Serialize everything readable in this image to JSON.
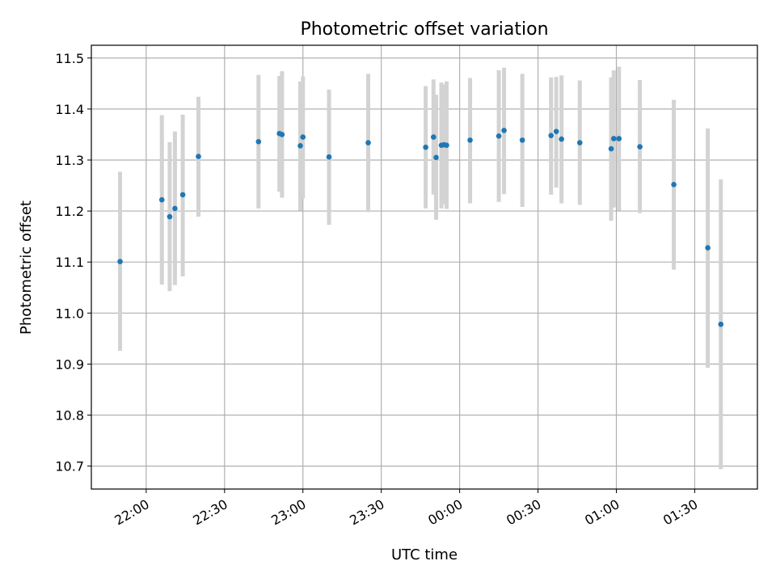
{
  "chart_data": {
    "type": "scatter",
    "title": "Photometric offset variation",
    "xlabel": "UTC time",
    "ylabel": "Photometric offset",
    "x_unit": "UTC",
    "xlim": [
      "21:39",
      "01:54"
    ],
    "ylim": [
      10.655,
      11.525
    ],
    "grid": true,
    "x_ticks": [
      {
        "value": "22:00",
        "label": "22:00"
      },
      {
        "value": "22:30",
        "label": "22:30"
      },
      {
        "value": "23:00",
        "label": "23:00"
      },
      {
        "value": "23:30",
        "label": "23:30"
      },
      {
        "value": "00:00",
        "label": "00:00"
      },
      {
        "value": "00:30",
        "label": "00:30"
      },
      {
        "value": "01:00",
        "label": "01:00"
      },
      {
        "value": "01:30",
        "label": "01:30"
      }
    ],
    "y_ticks": [
      {
        "value": 10.7,
        "label": "10.7"
      },
      {
        "value": 10.8,
        "label": "10.8"
      },
      {
        "value": 10.9,
        "label": "10.9"
      },
      {
        "value": 11.0,
        "label": "11.0"
      },
      {
        "value": 11.1,
        "label": "11.1"
      },
      {
        "value": 11.2,
        "label": "11.2"
      },
      {
        "value": 11.3,
        "label": "11.3"
      },
      {
        "value": 11.4,
        "label": "11.4"
      },
      {
        "value": 11.5,
        "label": "11.5"
      }
    ],
    "marker_color": "#1f77b4",
    "errorbar_color": "#d3d3d3",
    "points": [
      {
        "x": "21:50",
        "y": 11.101,
        "ylow": 10.926,
        "yhigh": 11.277
      },
      {
        "x": "22:06",
        "y": 11.222,
        "ylow": 11.056,
        "yhigh": 11.388
      },
      {
        "x": "22:09",
        "y": 11.189,
        "ylow": 11.043,
        "yhigh": 11.335
      },
      {
        "x": "22:11",
        "y": 11.205,
        "ylow": 11.055,
        "yhigh": 11.356
      },
      {
        "x": "22:14",
        "y": 11.232,
        "ylow": 11.072,
        "yhigh": 11.389
      },
      {
        "x": "22:20",
        "y": 11.307,
        "ylow": 11.189,
        "yhigh": 11.424
      },
      {
        "x": "22:43",
        "y": 11.336,
        "ylow": 11.205,
        "yhigh": 11.467
      },
      {
        "x": "22:51",
        "y": 11.352,
        "ylow": 11.238,
        "yhigh": 11.465
      },
      {
        "x": "22:52",
        "y": 11.35,
        "ylow": 11.226,
        "yhigh": 11.474
      },
      {
        "x": "22:59",
        "y": 11.328,
        "ylow": 11.201,
        "yhigh": 11.454
      },
      {
        "x": "23:00",
        "y": 11.345,
        "ylow": 11.225,
        "yhigh": 11.464
      },
      {
        "x": "23:10",
        "y": 11.306,
        "ylow": 11.173,
        "yhigh": 11.438
      },
      {
        "x": "23:25",
        "y": 11.334,
        "ylow": 11.198,
        "yhigh": 11.469
      },
      {
        "x": "23:47",
        "y": 11.325,
        "ylow": 11.205,
        "yhigh": 11.445
      },
      {
        "x": "23:50",
        "y": 11.345,
        "ylow": 11.232,
        "yhigh": 11.458
      },
      {
        "x": "23:51",
        "y": 11.305,
        "ylow": 11.183,
        "yhigh": 11.428
      },
      {
        "x": "23:53",
        "y": 11.329,
        "ylow": 11.205,
        "yhigh": 11.452
      },
      {
        "x": "23:54",
        "y": 11.33,
        "ylow": 11.213,
        "yhigh": 11.448
      },
      {
        "x": "23:55",
        "y": 11.329,
        "ylow": 11.204,
        "yhigh": 11.454
      },
      {
        "x": "00:04",
        "y": 11.339,
        "ylow": 11.215,
        "yhigh": 11.461
      },
      {
        "x": "00:15",
        "y": 11.347,
        "ylow": 11.218,
        "yhigh": 11.476
      },
      {
        "x": "00:17",
        "y": 11.358,
        "ylow": 11.233,
        "yhigh": 11.481
      },
      {
        "x": "00:24",
        "y": 11.339,
        "ylow": 11.208,
        "yhigh": 11.469
      },
      {
        "x": "00:35",
        "y": 11.348,
        "ylow": 11.232,
        "yhigh": 11.462
      },
      {
        "x": "00:37",
        "y": 11.356,
        "ylow": 11.246,
        "yhigh": 11.463
      },
      {
        "x": "00:39",
        "y": 11.341,
        "ylow": 11.215,
        "yhigh": 11.466
      },
      {
        "x": "00:46",
        "y": 11.334,
        "ylow": 11.212,
        "yhigh": 11.456
      },
      {
        "x": "00:58",
        "y": 11.322,
        "ylow": 11.181,
        "yhigh": 11.462
      },
      {
        "x": "00:59",
        "y": 11.342,
        "ylow": 11.207,
        "yhigh": 11.476
      },
      {
        "x": "01:01",
        "y": 11.342,
        "ylow": 11.201,
        "yhigh": 11.483
      },
      {
        "x": "01:09",
        "y": 11.326,
        "ylow": 11.196,
        "yhigh": 11.457
      },
      {
        "x": "01:22",
        "y": 11.252,
        "ylow": 11.085,
        "yhigh": 11.418
      },
      {
        "x": "01:35",
        "y": 11.128,
        "ylow": 10.893,
        "yhigh": 11.362
      },
      {
        "x": "01:40",
        "y": 10.978,
        "ylow": 10.694,
        "yhigh": 11.262
      }
    ]
  }
}
